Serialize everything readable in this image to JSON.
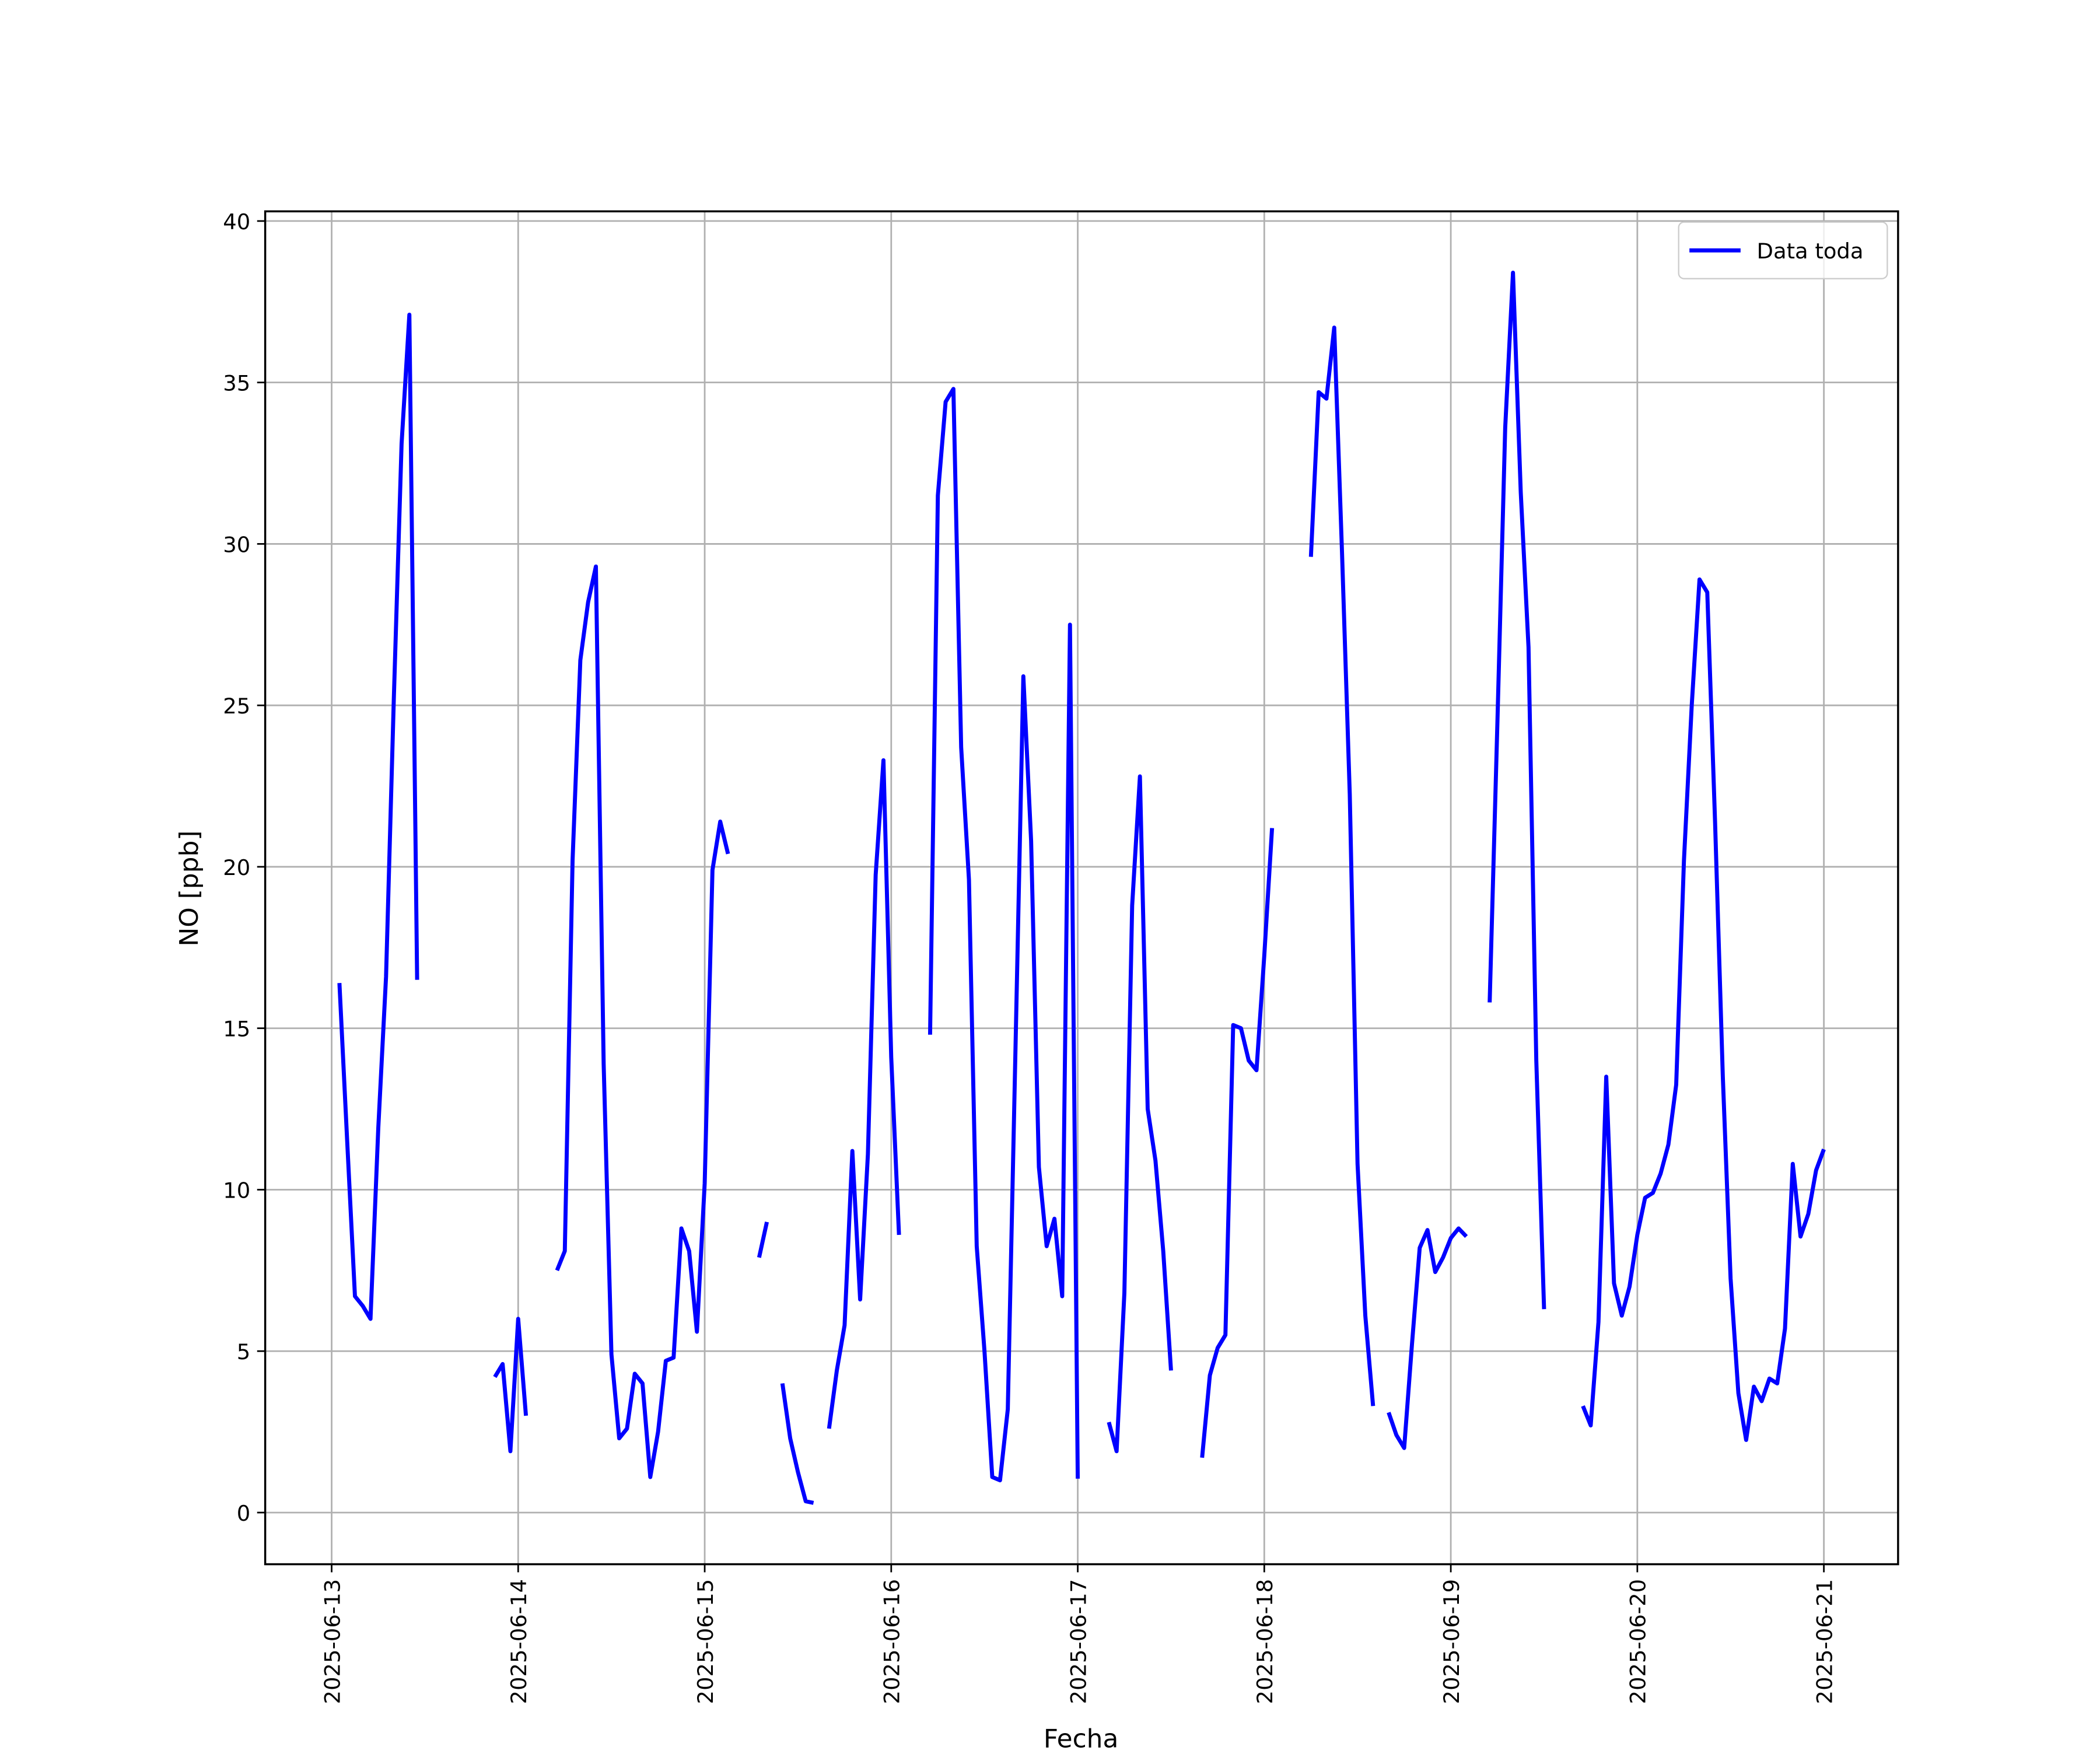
{
  "chart_data": {
    "type": "line",
    "xlabel": "Fecha",
    "ylabel": "NO [ppb]",
    "x": [
      "2025-06-13 01:00",
      "2025-06-13 02:00",
      "2025-06-13 03:00",
      "2025-06-13 04:00",
      "2025-06-13 05:00",
      "2025-06-13 06:00",
      "2025-06-13 07:00",
      "2025-06-13 08:00",
      "2025-06-13 09:00",
      "2025-06-13 10:00",
      "2025-06-13 11:00",
      "2025-06-13 12:00",
      "2025-06-13 21:00",
      "2025-06-13 22:00",
      "2025-06-13 23:00",
      "2025-06-14 00:00",
      "2025-06-14 01:00",
      "2025-06-14 02:00",
      "2025-06-14 05:00",
      "2025-06-14 06:00",
      "2025-06-14 07:00",
      "2025-06-14 08:00",
      "2025-06-14 09:00",
      "2025-06-14 10:00",
      "2025-06-14 11:00",
      "2025-06-14 12:00",
      "2025-06-14 13:00",
      "2025-06-14 14:00",
      "2025-06-14 15:00",
      "2025-06-14 16:00",
      "2025-06-14 17:00",
      "2025-06-14 18:00",
      "2025-06-14 19:00",
      "2025-06-14 20:00",
      "2025-06-14 21:00",
      "2025-06-14 22:00",
      "2025-06-14 23:00",
      "2025-06-15 00:00",
      "2025-06-15 01:00",
      "2025-06-15 02:00",
      "2025-06-15 03:00",
      "2025-06-15 04:00",
      "2025-06-15 07:00",
      "2025-06-15 08:00",
      "2025-06-15 09:00",
      "2025-06-15 10:00",
      "2025-06-15 11:00",
      "2025-06-15 12:00",
      "2025-06-15 13:00",
      "2025-06-15 14:00",
      "2025-06-15 15:00",
      "2025-06-15 16:00",
      "2025-06-15 17:00",
      "2025-06-15 18:00",
      "2025-06-15 19:00",
      "2025-06-15 20:00",
      "2025-06-15 21:00",
      "2025-06-15 22:00",
      "2025-06-15 23:00",
      "2025-06-16 00:00",
      "2025-06-16 01:00",
      "2025-06-16 02:00",
      "2025-06-16 05:00",
      "2025-06-16 06:00",
      "2025-06-16 07:00",
      "2025-06-16 08:00",
      "2025-06-16 09:00",
      "2025-06-16 10:00",
      "2025-06-16 11:00",
      "2025-06-16 12:00",
      "2025-06-16 13:00",
      "2025-06-16 14:00",
      "2025-06-16 15:00",
      "2025-06-16 16:00",
      "2025-06-16 17:00",
      "2025-06-16 18:00",
      "2025-06-16 19:00",
      "2025-06-16 20:00",
      "2025-06-16 21:00",
      "2025-06-16 22:00",
      "2025-06-16 23:00",
      "2025-06-17 00:00",
      "2025-06-17 01:00",
      "2025-06-17 04:00",
      "2025-06-17 05:00",
      "2025-06-17 06:00",
      "2025-06-17 07:00",
      "2025-06-17 08:00",
      "2025-06-17 09:00",
      "2025-06-17 10:00",
      "2025-06-17 11:00",
      "2025-06-17 12:00",
      "2025-06-17 13:00",
      "2025-06-17 16:00",
      "2025-06-17 17:00",
      "2025-06-17 18:00",
      "2025-06-17 19:00",
      "2025-06-17 20:00",
      "2025-06-17 21:00",
      "2025-06-17 22:00",
      "2025-06-17 23:00",
      "2025-06-18 00:00",
      "2025-06-18 01:00",
      "2025-06-18 02:00",
      "2025-06-18 06:00",
      "2025-06-18 07:00",
      "2025-06-18 08:00",
      "2025-06-18 09:00",
      "2025-06-18 10:00",
      "2025-06-18 11:00",
      "2025-06-18 12:00",
      "2025-06-18 13:00",
      "2025-06-18 14:00",
      "2025-06-18 15:00",
      "2025-06-18 16:00",
      "2025-06-18 17:00",
      "2025-06-18 18:00",
      "2025-06-18 19:00",
      "2025-06-18 20:00",
      "2025-06-18 21:00",
      "2025-06-18 22:00",
      "2025-06-18 23:00",
      "2025-06-19 00:00",
      "2025-06-19 01:00",
      "2025-06-19 02:00",
      "2025-06-19 03:00",
      "2025-06-19 05:00",
      "2025-06-19 06:00",
      "2025-06-19 07:00",
      "2025-06-19 08:00",
      "2025-06-19 09:00",
      "2025-06-19 10:00",
      "2025-06-19 11:00",
      "2025-06-19 12:00",
      "2025-06-19 13:00",
      "2025-06-19 17:00",
      "2025-06-19 18:00",
      "2025-06-19 19:00",
      "2025-06-19 20:00",
      "2025-06-19 21:00",
      "2025-06-19 22:00",
      "2025-06-19 23:00",
      "2025-06-20 00:00",
      "2025-06-20 01:00",
      "2025-06-20 02:00",
      "2025-06-20 03:00",
      "2025-06-20 04:00",
      "2025-06-20 05:00",
      "2025-06-20 06:00",
      "2025-06-20 07:00",
      "2025-06-20 08:00",
      "2025-06-20 09:00",
      "2025-06-20 10:00",
      "2025-06-20 11:00",
      "2025-06-20 12:00",
      "2025-06-20 13:00",
      "2025-06-20 14:00",
      "2025-06-20 15:00",
      "2025-06-20 16:00",
      "2025-06-20 17:00",
      "2025-06-20 18:00",
      "2025-06-20 19:00",
      "2025-06-20 20:00",
      "2025-06-20 21:00",
      "2025-06-20 22:00",
      "2025-06-20 23:00",
      "2025-06-21 00:00"
    ],
    "series": [
      {
        "name": "Data toda",
        "color": "#0000ff",
        "values": [
          16.4,
          11.5,
          6.7,
          6.4,
          6.0,
          11.9,
          16.6,
          25.2,
          33.1,
          37.1,
          16.5,
          null,
          4.2,
          4.6,
          1.9,
          6.0,
          3.0,
          null,
          7.5,
          8.1,
          20.2,
          26.4,
          28.2,
          29.3,
          13.9,
          4.9,
          2.3,
          2.6,
          4.3,
          4.0,
          1.1,
          2.5,
          4.7,
          4.8,
          8.8,
          8.1,
          5.6,
          10.2,
          19.9,
          21.4,
          20.4,
          null,
          7.9,
          9.0,
          null,
          4.0,
          2.3,
          1.25,
          0.35,
          0.3,
          null,
          2.6,
          4.4,
          5.8,
          11.2,
          6.6,
          11.1,
          19.75,
          23.3,
          14.1,
          8.6,
          null,
          14.8,
          31.5,
          34.4,
          34.8,
          23.7,
          19.6,
          8.25,
          5.0,
          1.1,
          1.0,
          3.2,
          14.5,
          25.9,
          20.8,
          10.7,
          8.25,
          9.1,
          6.7,
          27.5,
          1.05,
          null,
          2.8,
          1.9,
          6.8,
          18.8,
          22.8,
          12.5,
          10.9,
          8.1,
          4.4,
          null,
          1.7,
          4.25,
          5.1,
          5.5,
          15.1,
          15.0,
          14.0,
          13.7,
          17.25,
          21.2,
          null,
          29.6,
          34.7,
          34.5,
          36.7,
          29.75,
          22.25,
          10.8,
          6.1,
          3.3,
          null,
          3.1,
          2.4,
          2.0,
          5.2,
          8.2,
          8.75,
          7.45,
          7.9,
          8.5,
          8.8,
          8.55,
          null,
          15.8,
          24.5,
          33.6,
          38.4,
          31.6,
          26.8,
          14.0,
          6.3,
          null,
          3.3,
          2.7,
          5.9,
          13.5,
          7.1,
          6.1,
          7.0,
          8.6,
          9.75,
          9.9,
          10.5,
          11.4,
          13.25,
          20.2,
          25.0,
          28.9,
          28.5,
          21.4,
          13.5,
          7.25,
          3.7,
          2.25,
          3.9,
          3.45,
          4.15,
          4.0,
          5.7,
          10.8,
          8.55,
          9.25,
          10.6,
          11.25
        ]
      }
    ],
    "xlim": [
      "2025-06-12 15:27",
      "2025-06-21 09:33"
    ],
    "xticks": [
      "2025-06-13",
      "2025-06-14",
      "2025-06-15",
      "2025-06-16",
      "2025-06-17",
      "2025-06-18",
      "2025-06-19",
      "2025-06-20",
      "2025-06-21"
    ],
    "ylim": [
      -1.6,
      40.3
    ],
    "yticks": [
      0,
      5,
      10,
      15,
      20,
      25,
      30,
      35,
      40
    ],
    "grid": true,
    "legend": "upper right"
  }
}
